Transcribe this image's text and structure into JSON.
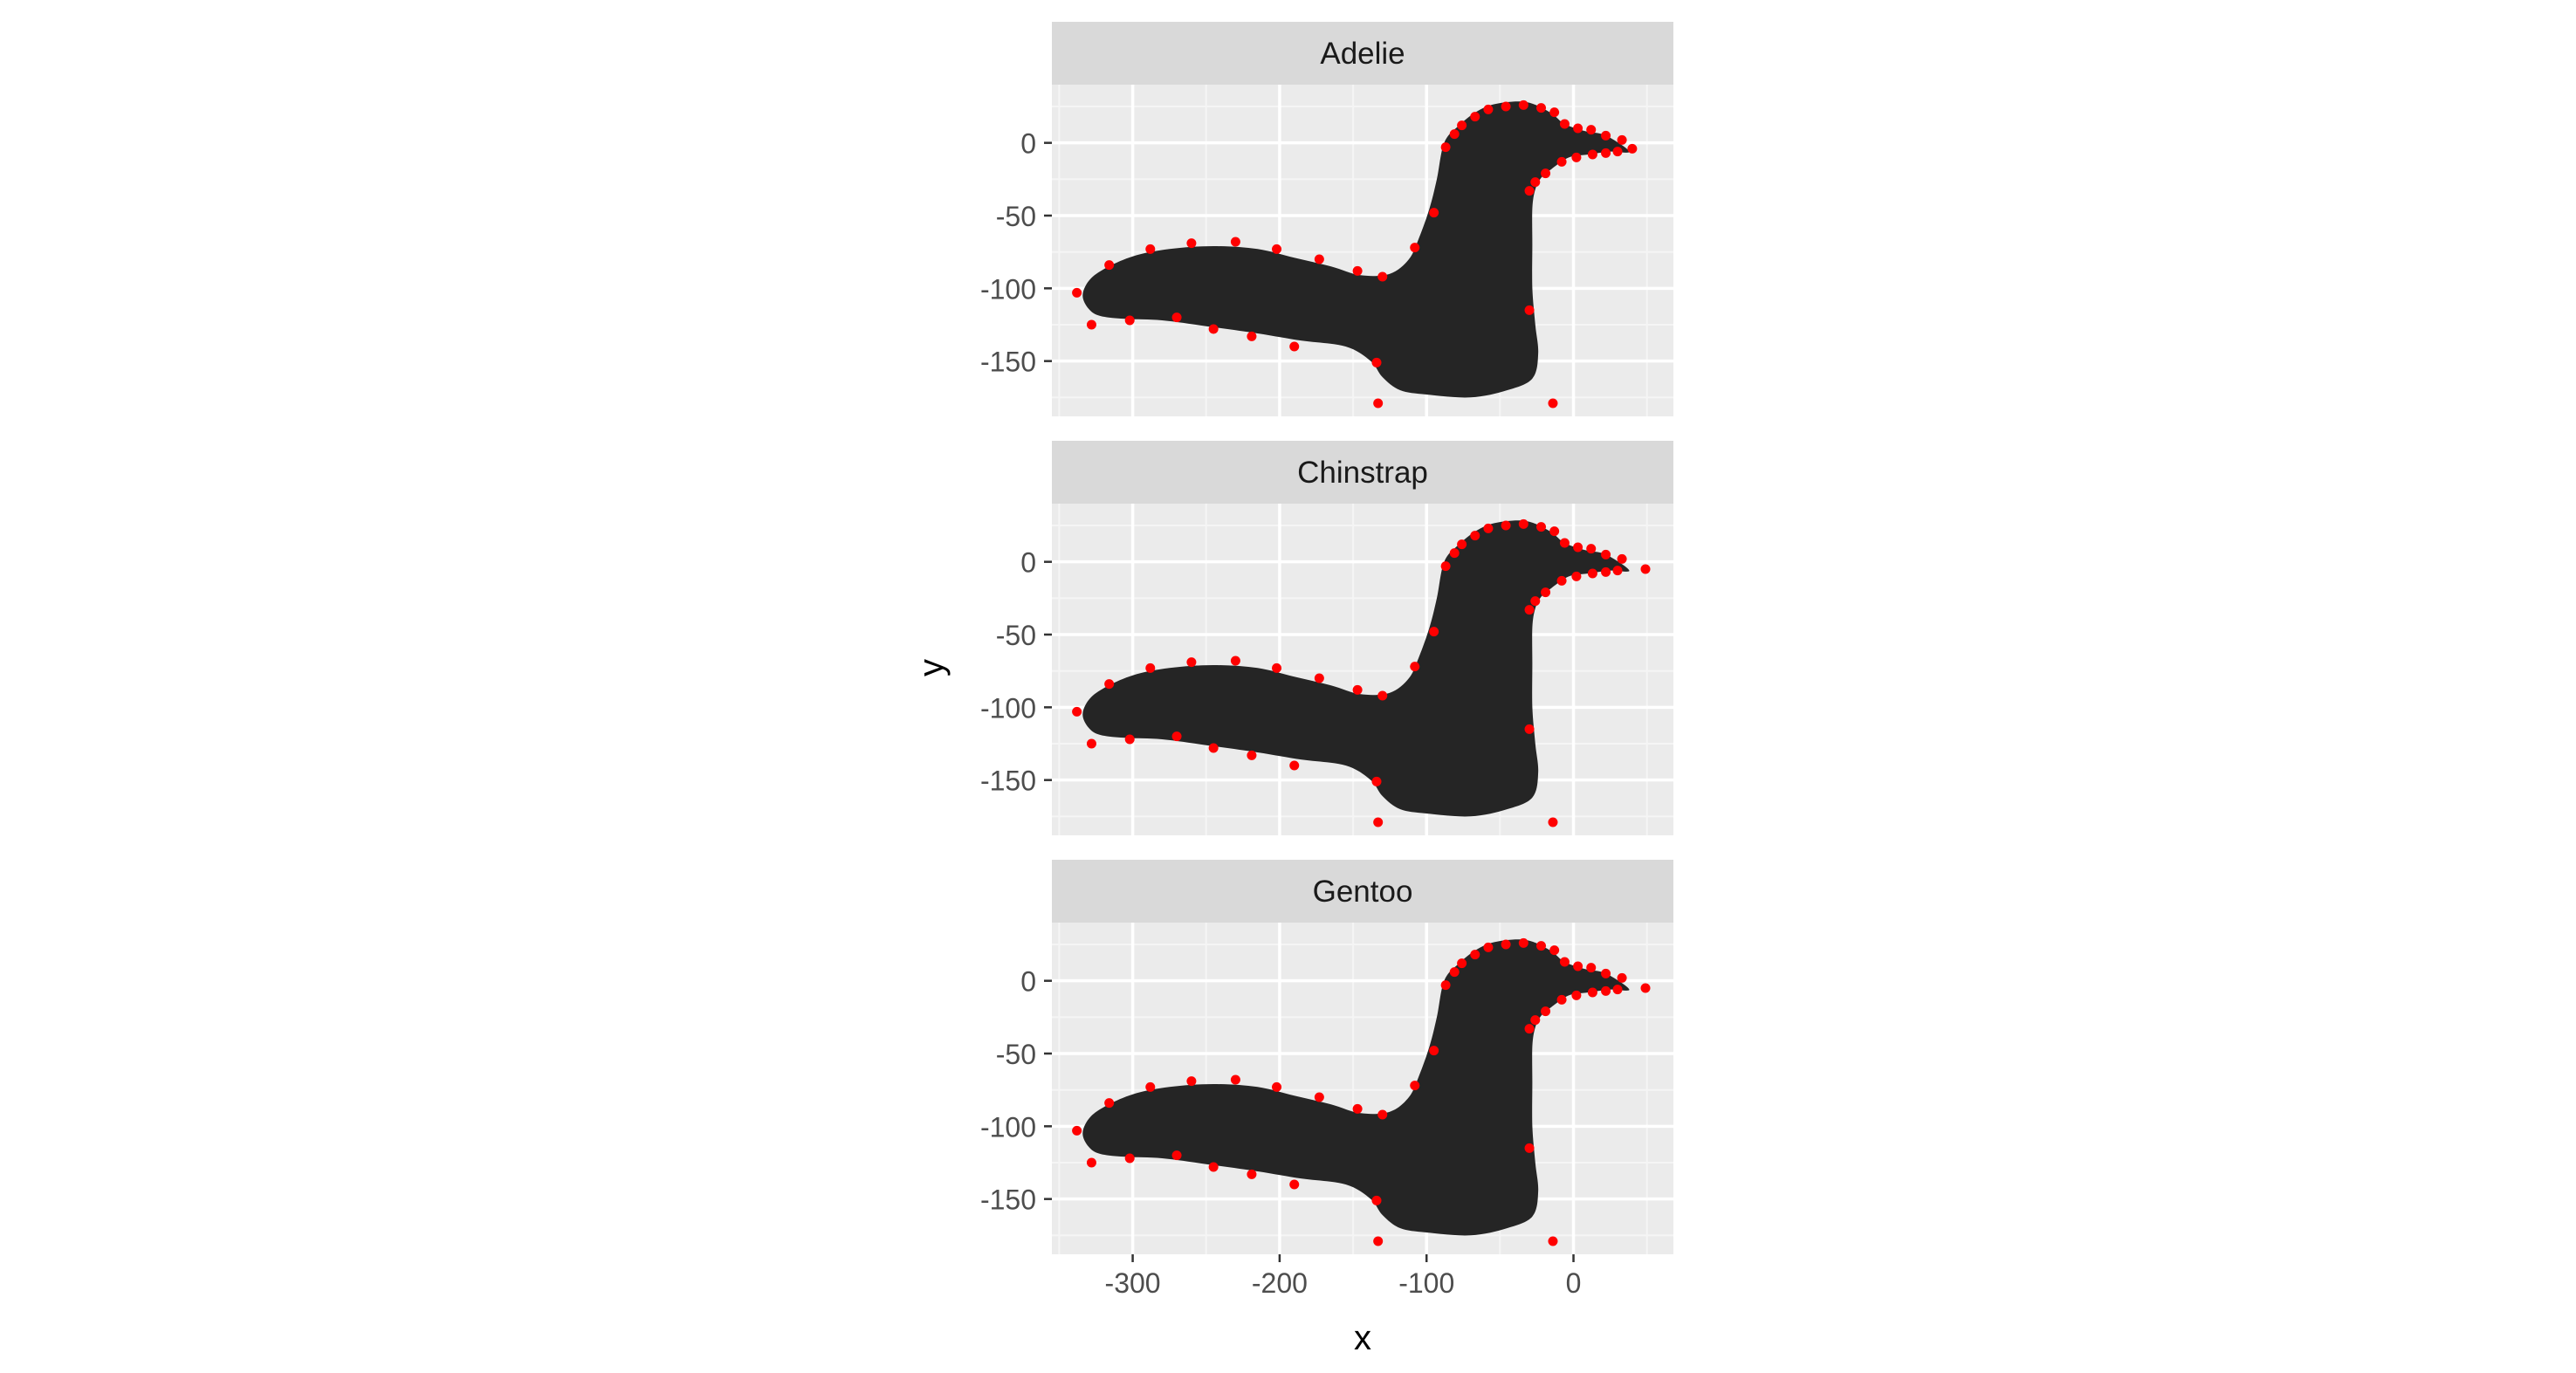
{
  "chart_data": {
    "type": "scatter",
    "facets": [
      "Adelie",
      "Chinstrap",
      "Gentoo"
    ],
    "xlabel": "x",
    "ylabel": "y",
    "xlim": [
      -355,
      68
    ],
    "ylim": [
      -188,
      40
    ],
    "x_ticks": [
      -300,
      -200,
      -100,
      0
    ],
    "x_tick_labels": [
      "-300",
      "-200",
      "-100",
      "0"
    ],
    "y_ticks": [
      0,
      -50,
      -100,
      -150
    ],
    "y_tick_labels": [
      "0",
      "-50",
      "-100",
      "-150"
    ],
    "grid": true,
    "legend": "none",
    "colors": {
      "panel_background": "#ebebeb",
      "strip_background": "#d9d9d9",
      "grid_major": "#ffffff",
      "grid_minor": "#f5f5f5",
      "shape_fill": "#252525",
      "point": "#ff0000",
      "axis_text": "#4d4d4d",
      "axis_title": "#000000"
    },
    "shape_outline": [
      [
        -88,
        0
      ],
      [
        -78,
        12
      ],
      [
        -65,
        22
      ],
      [
        -52,
        27
      ],
      [
        -32,
        28
      ],
      [
        -16,
        21
      ],
      [
        -6,
        13
      ],
      [
        8,
        8
      ],
      [
        22,
        5
      ],
      [
        38,
        -6
      ],
      [
        25,
        -6
      ],
      [
        10,
        -8
      ],
      [
        -3,
        -10
      ],
      [
        -15,
        -18
      ],
      [
        -22,
        -24
      ],
      [
        -26,
        -32
      ],
      [
        -28,
        -45
      ],
      [
        -28,
        -70
      ],
      [
        -28,
        -100
      ],
      [
        -26,
        -125
      ],
      [
        -24,
        -145
      ],
      [
        -28,
        -162
      ],
      [
        -45,
        -170
      ],
      [
        -70,
        -175
      ],
      [
        -100,
        -173
      ],
      [
        -118,
        -170
      ],
      [
        -130,
        -161
      ],
      [
        -138,
        -150
      ],
      [
        -155,
        -140
      ],
      [
        -185,
        -136
      ],
      [
        -215,
        -131
      ],
      [
        -250,
        -126
      ],
      [
        -280,
        -122
      ],
      [
        -305,
        -121
      ],
      [
        -322,
        -119
      ],
      [
        -330,
        -114
      ],
      [
        -334,
        -105
      ],
      [
        -330,
        -95
      ],
      [
        -320,
        -87
      ],
      [
        -300,
        -78
      ],
      [
        -275,
        -73
      ],
      [
        -245,
        -71
      ],
      [
        -215,
        -73
      ],
      [
        -190,
        -79
      ],
      [
        -165,
        -85
      ],
      [
        -145,
        -91
      ],
      [
        -125,
        -90
      ],
      [
        -112,
        -80
      ],
      [
        -105,
        -65
      ],
      [
        -98,
        -45
      ],
      [
        -93,
        -25
      ]
    ],
    "series": [
      {
        "facet": "Adelie",
        "points": [
          [
            -87,
            -3
          ],
          [
            -81,
            6
          ],
          [
            -76,
            12
          ],
          [
            -67,
            18
          ],
          [
            -58,
            23
          ],
          [
            -46,
            25
          ],
          [
            -34,
            26
          ],
          [
            -22,
            24
          ],
          [
            -13,
            21
          ],
          [
            -6,
            13
          ],
          [
            3,
            10
          ],
          [
            12,
            9
          ],
          [
            22,
            5
          ],
          [
            33,
            2
          ],
          [
            40,
            -4
          ],
          [
            30,
            -6
          ],
          [
            22,
            -7
          ],
          [
            13,
            -8
          ],
          [
            2,
            -10
          ],
          [
            -8,
            -13
          ],
          [
            -19,
            -21
          ],
          [
            -26,
            -27
          ],
          [
            -30,
            -33
          ],
          [
            -95,
            -48
          ],
          [
            -108,
            -72
          ],
          [
            -130,
            -92
          ],
          [
            -134,
            -151
          ],
          [
            -133,
            -179
          ],
          [
            -30,
            -115
          ],
          [
            -14,
            -179
          ],
          [
            -147,
            -88
          ],
          [
            -173,
            -80
          ],
          [
            -202,
            -73
          ],
          [
            -230,
            -68
          ],
          [
            -260,
            -69
          ],
          [
            -288,
            -73
          ],
          [
            -316,
            -84
          ],
          [
            -338,
            -103
          ],
          [
            -328,
            -125
          ],
          [
            -302,
            -122
          ],
          [
            -270,
            -120
          ],
          [
            -245,
            -128
          ],
          [
            -219,
            -133
          ],
          [
            -190,
            -140
          ]
        ]
      },
      {
        "facet": "Chinstrap",
        "points": [
          [
            -87,
            -3
          ],
          [
            -81,
            6
          ],
          [
            -76,
            12
          ],
          [
            -67,
            18
          ],
          [
            -58,
            23
          ],
          [
            -46,
            25
          ],
          [
            -34,
            26
          ],
          [
            -22,
            24
          ],
          [
            -13,
            21
          ],
          [
            -6,
            13
          ],
          [
            3,
            10
          ],
          [
            12,
            9
          ],
          [
            22,
            5
          ],
          [
            33,
            2
          ],
          [
            49,
            -5
          ],
          [
            30,
            -6
          ],
          [
            22,
            -7
          ],
          [
            13,
            -8
          ],
          [
            2,
            -10
          ],
          [
            -8,
            -13
          ],
          [
            -19,
            -21
          ],
          [
            -26,
            -27
          ],
          [
            -30,
            -33
          ],
          [
            -95,
            -48
          ],
          [
            -108,
            -72
          ],
          [
            -130,
            -92
          ],
          [
            -134,
            -151
          ],
          [
            -133,
            -179
          ],
          [
            -30,
            -115
          ],
          [
            -14,
            -179
          ],
          [
            -147,
            -88
          ],
          [
            -173,
            -80
          ],
          [
            -202,
            -73
          ],
          [
            -230,
            -68
          ],
          [
            -260,
            -69
          ],
          [
            -288,
            -73
          ],
          [
            -316,
            -84
          ],
          [
            -338,
            -103
          ],
          [
            -328,
            -125
          ],
          [
            -302,
            -122
          ],
          [
            -270,
            -120
          ],
          [
            -245,
            -128
          ],
          [
            -219,
            -133
          ],
          [
            -190,
            -140
          ]
        ]
      },
      {
        "facet": "Gentoo",
        "points": [
          [
            -87,
            -3
          ],
          [
            -81,
            6
          ],
          [
            -76,
            12
          ],
          [
            -67,
            18
          ],
          [
            -58,
            23
          ],
          [
            -46,
            25
          ],
          [
            -34,
            26
          ],
          [
            -22,
            24
          ],
          [
            -13,
            21
          ],
          [
            -6,
            13
          ],
          [
            3,
            10
          ],
          [
            12,
            9
          ],
          [
            22,
            5
          ],
          [
            33,
            2
          ],
          [
            49,
            -5
          ],
          [
            30,
            -6
          ],
          [
            22,
            -7
          ],
          [
            13,
            -8
          ],
          [
            2,
            -10
          ],
          [
            -8,
            -13
          ],
          [
            -19,
            -21
          ],
          [
            -26,
            -27
          ],
          [
            -30,
            -33
          ],
          [
            -95,
            -48
          ],
          [
            -108,
            -72
          ],
          [
            -130,
            -92
          ],
          [
            -134,
            -151
          ],
          [
            -133,
            -179
          ],
          [
            -30,
            -115
          ],
          [
            -14,
            -179
          ],
          [
            -147,
            -88
          ],
          [
            -173,
            -80
          ],
          [
            -202,
            -73
          ],
          [
            -230,
            -68
          ],
          [
            -260,
            -69
          ],
          [
            -288,
            -73
          ],
          [
            -316,
            -84
          ],
          [
            -338,
            -103
          ],
          [
            -328,
            -125
          ],
          [
            -302,
            -122
          ],
          [
            -270,
            -120
          ],
          [
            -245,
            -128
          ],
          [
            -219,
            -133
          ],
          [
            -190,
            -140
          ]
        ]
      }
    ]
  }
}
